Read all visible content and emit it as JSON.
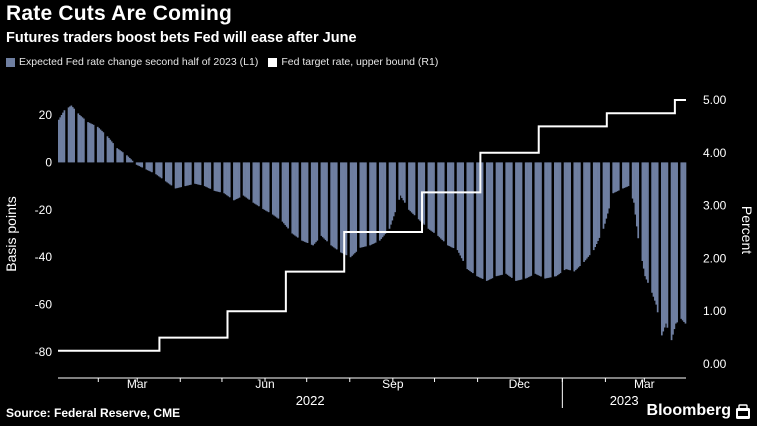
{
  "header": {
    "title": "Rate Cuts Are Coming",
    "subtitle": "Futures traders boost bets Fed will ease after June"
  },
  "legend": {
    "bars_label": "Expected Fed rate change second half of 2023 (L1)",
    "line_label": "Fed target rate, upper bound (R1)"
  },
  "footer": {
    "source": "Source: Federal Reserve, CME",
    "brand": "Bloomberg"
  },
  "colors": {
    "bars": "#6f7fa1",
    "line": "#ffffff",
    "background": "#000000",
    "text": "#ffffff"
  },
  "chart_data": {
    "type": "bar",
    "x_axis": {
      "start": "2022-01-03",
      "end": "2023-03-31",
      "month_ticks": [
        "Mar",
        "Jun",
        "Sep",
        "Dec",
        "Mar"
      ],
      "month_tick_dates": [
        "2022-03-01",
        "2022-06-01",
        "2022-09-01",
        "2022-12-01",
        "2023-03-01"
      ],
      "years": [
        "2022",
        "2023"
      ]
    },
    "left_axis": {
      "label": "Basis points",
      "ylim": [
        -88,
        30
      ],
      "ticks": [
        20,
        0,
        -20,
        -40,
        -60,
        -80
      ]
    },
    "right_axis": {
      "label": "Percent",
      "ylim": [
        -0.05,
        5.3
      ],
      "ticks": [
        "5.00",
        "4.00",
        "3.00",
        "2.00",
        "1.00",
        "0.00"
      ]
    },
    "series": [
      {
        "name": "Expected Fed rate change second half of 2023 (L1)",
        "type": "bar",
        "axis": "left",
        "points": [
          [
            "2022-01-03",
            18
          ],
          [
            "2022-01-07",
            22
          ],
          [
            "2022-01-12",
            24
          ],
          [
            "2022-01-18",
            20
          ],
          [
            "2022-01-24",
            17
          ],
          [
            "2022-01-31",
            15
          ],
          [
            "2022-02-07",
            11
          ],
          [
            "2022-02-14",
            6
          ],
          [
            "2022-02-21",
            3
          ],
          [
            "2022-02-28",
            -1
          ],
          [
            "2022-03-07",
            -3
          ],
          [
            "2022-03-14",
            -5
          ],
          [
            "2022-03-21",
            -8
          ],
          [
            "2022-03-28",
            -11
          ],
          [
            "2022-04-04",
            -10
          ],
          [
            "2022-04-11",
            -9
          ],
          [
            "2022-04-18",
            -10
          ],
          [
            "2022-04-25",
            -12
          ],
          [
            "2022-05-02",
            -13
          ],
          [
            "2022-05-09",
            -16
          ],
          [
            "2022-05-16",
            -14
          ],
          [
            "2022-05-23",
            -17
          ],
          [
            "2022-05-31",
            -20
          ],
          [
            "2022-06-06",
            -22
          ],
          [
            "2022-06-13",
            -25
          ],
          [
            "2022-06-20",
            -30
          ],
          [
            "2022-06-27",
            -33
          ],
          [
            "2022-07-05",
            -35
          ],
          [
            "2022-07-11",
            -31
          ],
          [
            "2022-07-18",
            -35
          ],
          [
            "2022-07-25",
            -38
          ],
          [
            "2022-08-01",
            -40
          ],
          [
            "2022-08-08",
            -36
          ],
          [
            "2022-08-15",
            -35
          ],
          [
            "2022-08-22",
            -33
          ],
          [
            "2022-08-29",
            -28
          ],
          [
            "2022-09-06",
            -14
          ],
          [
            "2022-09-12",
            -20
          ],
          [
            "2022-09-19",
            -24
          ],
          [
            "2022-09-26",
            -28
          ],
          [
            "2022-10-03",
            -31
          ],
          [
            "2022-10-10",
            -35
          ],
          [
            "2022-10-17",
            -37
          ],
          [
            "2022-10-24",
            -45
          ],
          [
            "2022-10-31",
            -48
          ],
          [
            "2022-11-07",
            -50
          ],
          [
            "2022-11-14",
            -48
          ],
          [
            "2022-11-21",
            -47
          ],
          [
            "2022-11-28",
            -50
          ],
          [
            "2022-12-05",
            -49
          ],
          [
            "2022-12-12",
            -47
          ],
          [
            "2022-12-19",
            -49
          ],
          [
            "2022-12-27",
            -48
          ],
          [
            "2023-01-03",
            -45
          ],
          [
            "2023-01-09",
            -46
          ],
          [
            "2023-01-16",
            -42
          ],
          [
            "2023-01-23",
            -37
          ],
          [
            "2023-01-30",
            -28
          ],
          [
            "2023-02-06",
            -13
          ],
          [
            "2023-02-13",
            -11
          ],
          [
            "2023-02-17",
            -10
          ],
          [
            "2023-02-21",
            -17
          ],
          [
            "2023-02-24",
            -32
          ],
          [
            "2023-03-01",
            -48
          ],
          [
            "2023-03-06",
            -55
          ],
          [
            "2023-03-09",
            -60
          ],
          [
            "2023-03-13",
            -73
          ],
          [
            "2023-03-16",
            -68
          ],
          [
            "2023-03-20",
            -75
          ],
          [
            "2023-03-23",
            -68
          ],
          [
            "2023-03-27",
            -66
          ],
          [
            "2023-03-30",
            -68
          ]
        ]
      },
      {
        "name": "Fed target rate, upper bound (R1)",
        "type": "step",
        "axis": "right",
        "points": [
          [
            "2022-01-03",
            0.25
          ],
          [
            "2022-03-17",
            0.5
          ],
          [
            "2022-05-05",
            1.0
          ],
          [
            "2022-06-16",
            1.75
          ],
          [
            "2022-07-28",
            2.5
          ],
          [
            "2022-09-22",
            3.25
          ],
          [
            "2022-11-03",
            4.0
          ],
          [
            "2022-12-15",
            4.5
          ],
          [
            "2023-02-02",
            4.75
          ],
          [
            "2023-03-23",
            5.0
          ],
          [
            "2023-03-31",
            5.0
          ]
        ]
      }
    ],
    "grid": false,
    "legend_position": "top-left"
  }
}
